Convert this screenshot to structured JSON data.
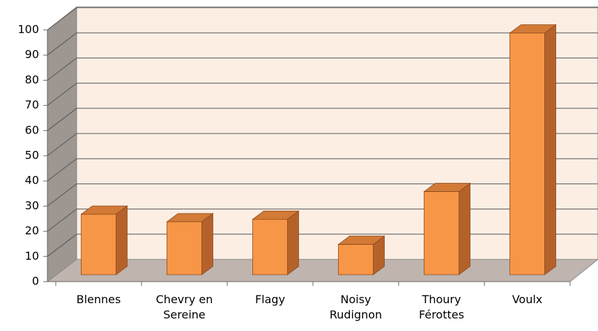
{
  "chart_data": {
    "type": "bar3d",
    "categories": [
      "Blennes",
      "Chevry en Sereine",
      "Flagy",
      "Noisy Rudignon",
      "Thoury Férottes",
      "Voulx"
    ],
    "values": [
      24,
      21,
      22,
      12,
      33,
      96
    ],
    "color": "#f79646",
    "ylim": [
      0,
      100
    ],
    "yticks": [
      0,
      10,
      20,
      30,
      40,
      50,
      60,
      70,
      80,
      90,
      100
    ],
    "grid": true
  }
}
